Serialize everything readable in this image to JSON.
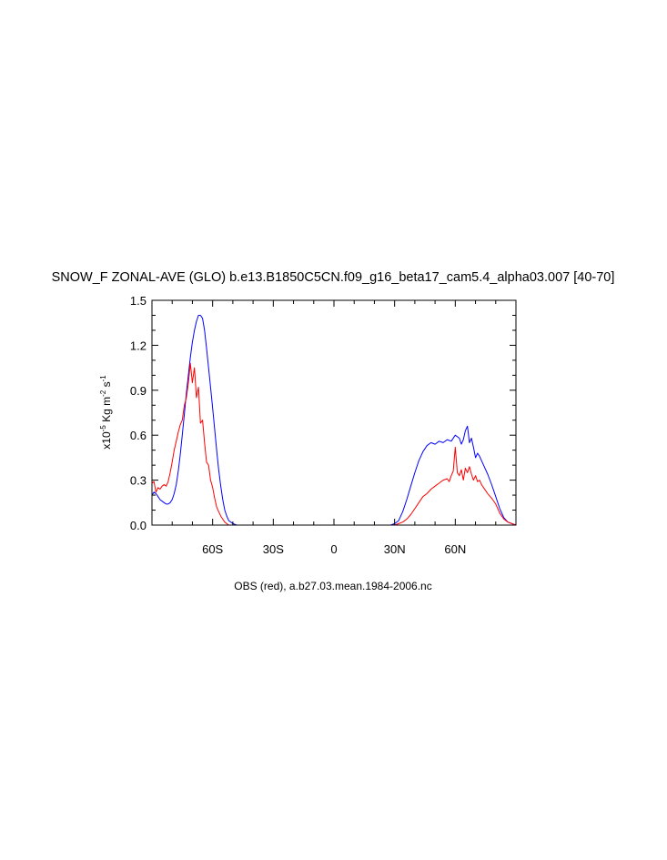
{
  "chart_data": {
    "type": "line",
    "title": "SNOW_F ZONAL-AVE (GLO) b.e13.B1850C5CN.f09_g16_beta17_cam5.4_alpha03.007 [40-70]",
    "xlabel": "OBS (red), a.b27.03.mean.1984-2006.nc",
    "ylabel_prefix": "x10",
    "ylabel_exp": "-5",
    "ylabel_mid": " Kg m",
    "ylabel_exp2": "-2",
    "ylabel_mid2": " s",
    "ylabel_exp3": "-1",
    "xlim": [
      -90,
      90
    ],
    "ylim": [
      0,
      1.5
    ],
    "xticks": [
      {
        "value": -60,
        "label": "60S"
      },
      {
        "value": -30,
        "label": "30S"
      },
      {
        "value": 0,
        "label": "0"
      },
      {
        "value": 30,
        "label": "30N"
      },
      {
        "value": 60,
        "label": "60N"
      }
    ],
    "yticks": [
      {
        "value": 0,
        "label": "0.0"
      },
      {
        "value": 0.3,
        "label": "0.3"
      },
      {
        "value": 0.6,
        "label": "0.6"
      },
      {
        "value": 0.9,
        "label": "0.9"
      },
      {
        "value": 1.2,
        "label": "1.2"
      },
      {
        "value": 1.5,
        "label": "1.5"
      }
    ],
    "series": [
      {
        "color": "#0000ff",
        "x": [
          -90,
          -89,
          -88,
          -87,
          -86,
          -85,
          -84,
          -83,
          -82,
          -81,
          -80,
          -79,
          -78,
          -77,
          -76,
          -75,
          -74,
          -73,
          -72,
          -71,
          -70,
          -69,
          -68,
          -67,
          -66,
          -65,
          -64,
          -63,
          -62,
          -61,
          -60,
          -59,
          -58,
          -57,
          -56,
          -55,
          -54,
          -53,
          -52,
          -51,
          -50,
          -49,
          -48,
          -47,
          -46,
          -45,
          -44,
          -43,
          -42,
          -40,
          -35,
          -30,
          -20,
          -10,
          0,
          10,
          20,
          28,
          30,
          32,
          34,
          36,
          38,
          40,
          42,
          44,
          46,
          48,
          50,
          52,
          54,
          56,
          58,
          60,
          62,
          63,
          64,
          65,
          66,
          67,
          68,
          69,
          70,
          71,
          72,
          74,
          76,
          78,
          80,
          82,
          84,
          86,
          88,
          90
        ],
        "values": [
          0.2,
          0.22,
          0.21,
          0.19,
          0.17,
          0.16,
          0.15,
          0.14,
          0.14,
          0.15,
          0.17,
          0.21,
          0.27,
          0.36,
          0.47,
          0.6,
          0.74,
          0.88,
          1.0,
          1.12,
          1.22,
          1.3,
          1.36,
          1.4,
          1.4,
          1.38,
          1.3,
          1.18,
          1.05,
          0.92,
          0.78,
          0.64,
          0.5,
          0.37,
          0.26,
          0.17,
          0.1,
          0.06,
          0.03,
          0.02,
          0.01,
          0.005,
          0.0,
          0.0,
          0.0,
          0.0,
          0.0,
          0.0,
          0.0,
          0.0,
          0.0,
          0.0,
          0.0,
          0.0,
          0.0,
          0.0,
          0.0,
          0.0,
          0.01,
          0.03,
          0.09,
          0.17,
          0.26,
          0.35,
          0.43,
          0.49,
          0.53,
          0.55,
          0.54,
          0.56,
          0.55,
          0.57,
          0.56,
          0.6,
          0.58,
          0.54,
          0.57,
          0.63,
          0.66,
          0.55,
          0.58,
          0.52,
          0.45,
          0.48,
          0.46,
          0.4,
          0.34,
          0.27,
          0.19,
          0.11,
          0.05,
          0.02,
          0.01,
          0.0
        ]
      },
      {
        "color": "#ff0000",
        "x": [
          -90,
          -89,
          -88,
          -87,
          -86,
          -85,
          -84,
          -83,
          -82,
          -81,
          -80,
          -79,
          -78,
          -77,
          -76,
          -75,
          -74,
          -73,
          -72,
          -71,
          -70,
          -69,
          -68,
          -67,
          -66,
          -65,
          -64,
          -63,
          -62,
          -61,
          -60,
          -59,
          -58,
          -57,
          -56,
          -55,
          -54,
          -53,
          -52,
          -51,
          -50,
          -48,
          -46,
          -44,
          -42,
          -40,
          -35,
          -30,
          -20,
          -10,
          0,
          10,
          20,
          30,
          32,
          34,
          36,
          38,
          40,
          42,
          44,
          46,
          48,
          50,
          52,
          54,
          56,
          57,
          58,
          59,
          60,
          61,
          62,
          63,
          64,
          65,
          66,
          67,
          68,
          69,
          70,
          71,
          72,
          73,
          74,
          76,
          78,
          80,
          82,
          84,
          86,
          88,
          90
        ],
        "values": [
          0.28,
          0.29,
          0.22,
          0.25,
          0.24,
          0.26,
          0.27,
          0.26,
          0.29,
          0.35,
          0.42,
          0.5,
          0.56,
          0.62,
          0.67,
          0.7,
          0.8,
          0.85,
          0.95,
          1.08,
          0.95,
          1.05,
          0.85,
          0.92,
          0.68,
          0.7,
          0.55,
          0.42,
          0.4,
          0.3,
          0.25,
          0.18,
          0.12,
          0.09,
          0.06,
          0.04,
          0.02,
          0.01,
          0.0,
          0.0,
          0.0,
          0.0,
          0.0,
          0.0,
          0.0,
          0.0,
          0.0,
          0.0,
          0.0,
          0.0,
          0.0,
          0.0,
          0.0,
          0.0,
          0.01,
          0.02,
          0.04,
          0.07,
          0.11,
          0.15,
          0.19,
          0.21,
          0.24,
          0.26,
          0.28,
          0.3,
          0.31,
          0.29,
          0.33,
          0.36,
          0.52,
          0.35,
          0.33,
          0.37,
          0.3,
          0.38,
          0.35,
          0.39,
          0.34,
          0.3,
          0.33,
          0.29,
          0.3,
          0.27,
          0.25,
          0.21,
          0.18,
          0.14,
          0.08,
          0.04,
          0.02,
          0.01,
          0.0
        ]
      }
    ]
  }
}
